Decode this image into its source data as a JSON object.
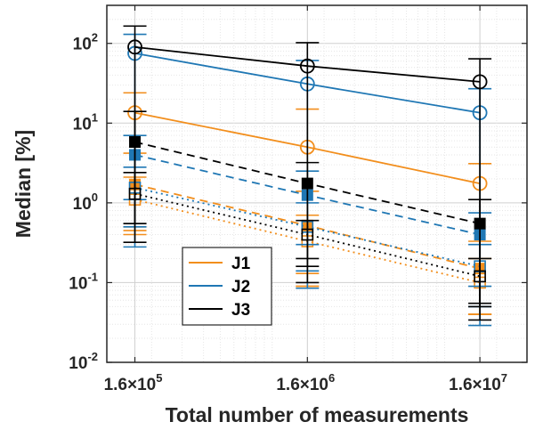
{
  "chart_data": {
    "type": "line",
    "xlabel": "Total number of measurements",
    "ylabel": "Median [%]",
    "x_scale": "log",
    "y_scale": "log",
    "x": [
      160000,
      1600000,
      16000000
    ],
    "x_tick_labels": [
      {
        "base": "1.6×10",
        "exp": "5"
      },
      {
        "base": "1.6×10",
        "exp": "6"
      },
      {
        "base": "1.6×10",
        "exp": "7"
      }
    ],
    "y_tick_labels": [
      {
        "base": "10",
        "exp": "-2"
      },
      {
        "base": "10",
        "exp": "-1"
      },
      {
        "base": "10",
        "exp": "0"
      },
      {
        "base": "10",
        "exp": "1"
      },
      {
        "base": "10",
        "exp": "2"
      }
    ],
    "ylim": [
      0.01,
      300
    ],
    "grid": true,
    "legend_position": "lower-left",
    "legend": [
      "J1",
      "J2",
      "J3"
    ],
    "colors": {
      "J1": "#EDB120",
      "J2": "#0072BD",
      "J3": "#000000",
      "J1_line": "#F28E1C",
      "J2_line": "#1F77B4"
    },
    "series": [
      {
        "name": "J1",
        "group": "J1",
        "linestyle": "solid",
        "marker": "circle-open",
        "values": [
          13.5,
          5.0,
          1.75
        ],
        "err_low": [
          0.5,
          0.09,
          0.04
        ],
        "err_high": [
          24,
          15,
          3.1
        ]
      },
      {
        "name": "J1",
        "group": "J1",
        "linestyle": "dashed",
        "marker": "square-filled",
        "values": [
          1.7,
          0.52,
          0.15
        ],
        "err_low": [
          0.45,
          0.13,
          0.04
        ],
        "err_high": [
          4.2,
          1.4,
          0.33
        ]
      },
      {
        "name": "J1",
        "group": "J1",
        "linestyle": "dotted",
        "marker": "square-open",
        "values": [
          1.1,
          0.33,
          0.1
        ],
        "err_low": [
          0.4,
          0.09,
          0.04
        ],
        "err_high": [
          2.1,
          0.7,
          0.2
        ]
      },
      {
        "name": "J2",
        "group": "J2",
        "linestyle": "solid",
        "marker": "circle-open",
        "values": [
          75,
          31,
          13.5
        ],
        "err_low": [
          0.28,
          0.085,
          0.029
        ],
        "err_high": [
          130,
          61,
          27
        ]
      },
      {
        "name": "J2",
        "group": "J2",
        "linestyle": "dashed",
        "marker": "square-filled",
        "values": [
          4.0,
          1.25,
          0.4
        ],
        "err_low": [
          1.1,
          0.3,
          0.09
        ],
        "err_high": [
          7.0,
          2.5,
          0.75
        ]
      },
      {
        "name": "J2",
        "group": "J2",
        "linestyle": "dotted",
        "marker": "square-open",
        "values": [
          1.55,
          0.5,
          0.16
        ],
        "err_low": [
          0.5,
          0.14,
          0.05
        ],
        "err_high": [
          2.8,
          1.0,
          0.3
        ]
      },
      {
        "name": "J3",
        "group": "J3",
        "linestyle": "solid",
        "marker": "circle-open",
        "values": [
          90,
          52,
          33
        ],
        "err_low": [
          0.32,
          0.1,
          0.034
        ],
        "err_high": [
          165,
          102,
          64
        ]
      },
      {
        "name": "J3",
        "group": "J3",
        "linestyle": "dashed",
        "marker": "square-filled",
        "values": [
          5.8,
          1.75,
          0.55
        ],
        "err_low": [
          0.55,
          0.16,
          0.05
        ],
        "err_high": [
          14,
          3.2,
          1.1
        ]
      },
      {
        "name": "J3",
        "group": "J3",
        "linestyle": "dotted",
        "marker": "square-open",
        "values": [
          1.3,
          0.4,
          0.12
        ],
        "err_low": [
          0.55,
          0.2,
          0.055
        ],
        "err_high": [
          2.4,
          0.6,
          0.2
        ]
      }
    ]
  }
}
